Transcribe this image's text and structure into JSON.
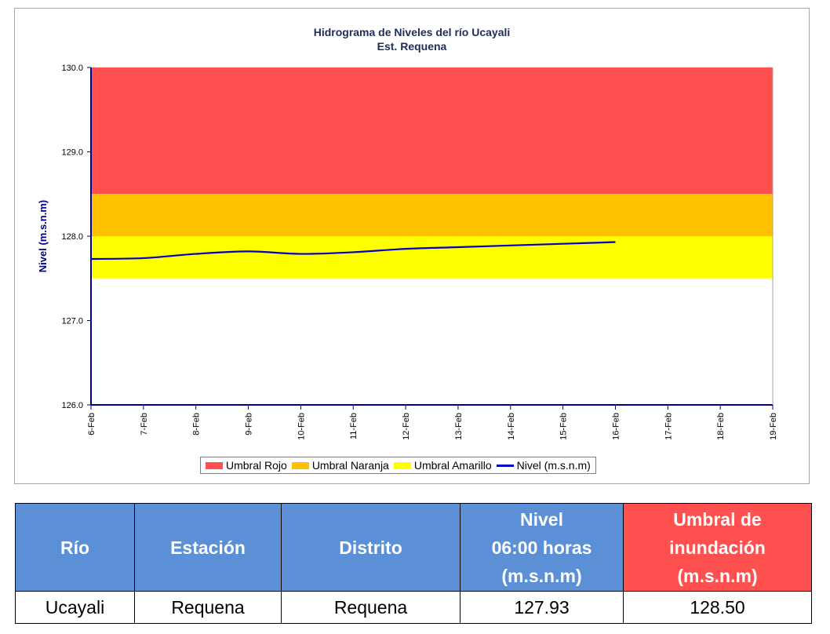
{
  "chart_data": {
    "type": "line",
    "title": "Hidrograma de Niveles del río Ucayali",
    "subtitle": "Est. Requena",
    "ylabel": "Nivel (m.s.n.m)",
    "ylim": [
      126.0,
      130.0
    ],
    "yticks": [
      "126.0",
      "127.0",
      "128.0",
      "129.0",
      "130.0"
    ],
    "xticks": [
      "6-Feb",
      "7-Feb",
      "8-Feb",
      "9-Feb",
      "10-Feb",
      "11-Feb",
      "12-Feb",
      "13-Feb",
      "14-Feb",
      "15-Feb",
      "16-Feb",
      "17-Feb",
      "18-Feb",
      "19-Feb"
    ],
    "bands": [
      {
        "name": "Umbral Rojo",
        "from": 128.5,
        "to": 130.0,
        "color": "#ff5050"
      },
      {
        "name": "Umbral Naranja",
        "from": 128.0,
        "to": 128.5,
        "color": "#ffc000"
      },
      {
        "name": "Umbral Amarillo",
        "from": 127.5,
        "to": 128.0,
        "color": "#ffff00"
      }
    ],
    "series": [
      {
        "name": "Nivel (m.s.n.m)",
        "color": "#0000c0",
        "x": [
          "6-Feb",
          "7-Feb",
          "8-Feb",
          "9-Feb",
          "10-Feb",
          "11-Feb",
          "12-Feb",
          "13-Feb",
          "14-Feb",
          "15-Feb",
          "16-Feb"
        ],
        "values": [
          127.73,
          127.74,
          127.79,
          127.82,
          127.79,
          127.81,
          127.85,
          127.87,
          127.89,
          127.91,
          127.93
        ]
      }
    ],
    "grid": false,
    "legend_position": "bottom"
  },
  "legend": {
    "rojo": "Umbral Rojo",
    "naranja": "Umbral Naranja",
    "amarillo": "Umbral Amarillo",
    "nivel": "Nivel (m.s.n.m)"
  },
  "table": {
    "headers": {
      "rio": "Río",
      "estacion": "Estación",
      "distrito": "Distrito",
      "nivel_1": "Nivel",
      "nivel_2": "06:00 horas",
      "nivel_3": "(m.s.n.m)",
      "umbral_1": "Umbral de",
      "umbral_2": "inundación",
      "umbral_3": "(m.s.n.m)"
    },
    "row": {
      "rio": "Ucayali",
      "estacion": "Requena",
      "distrito": "Requena",
      "nivel": "127.93",
      "umbral": "128.50"
    }
  },
  "colors": {
    "header_blue": "#5b8fd6",
    "header_red": "#ff5050",
    "title_navy": "#1f2d5c",
    "line_blue": "#0000c0"
  }
}
